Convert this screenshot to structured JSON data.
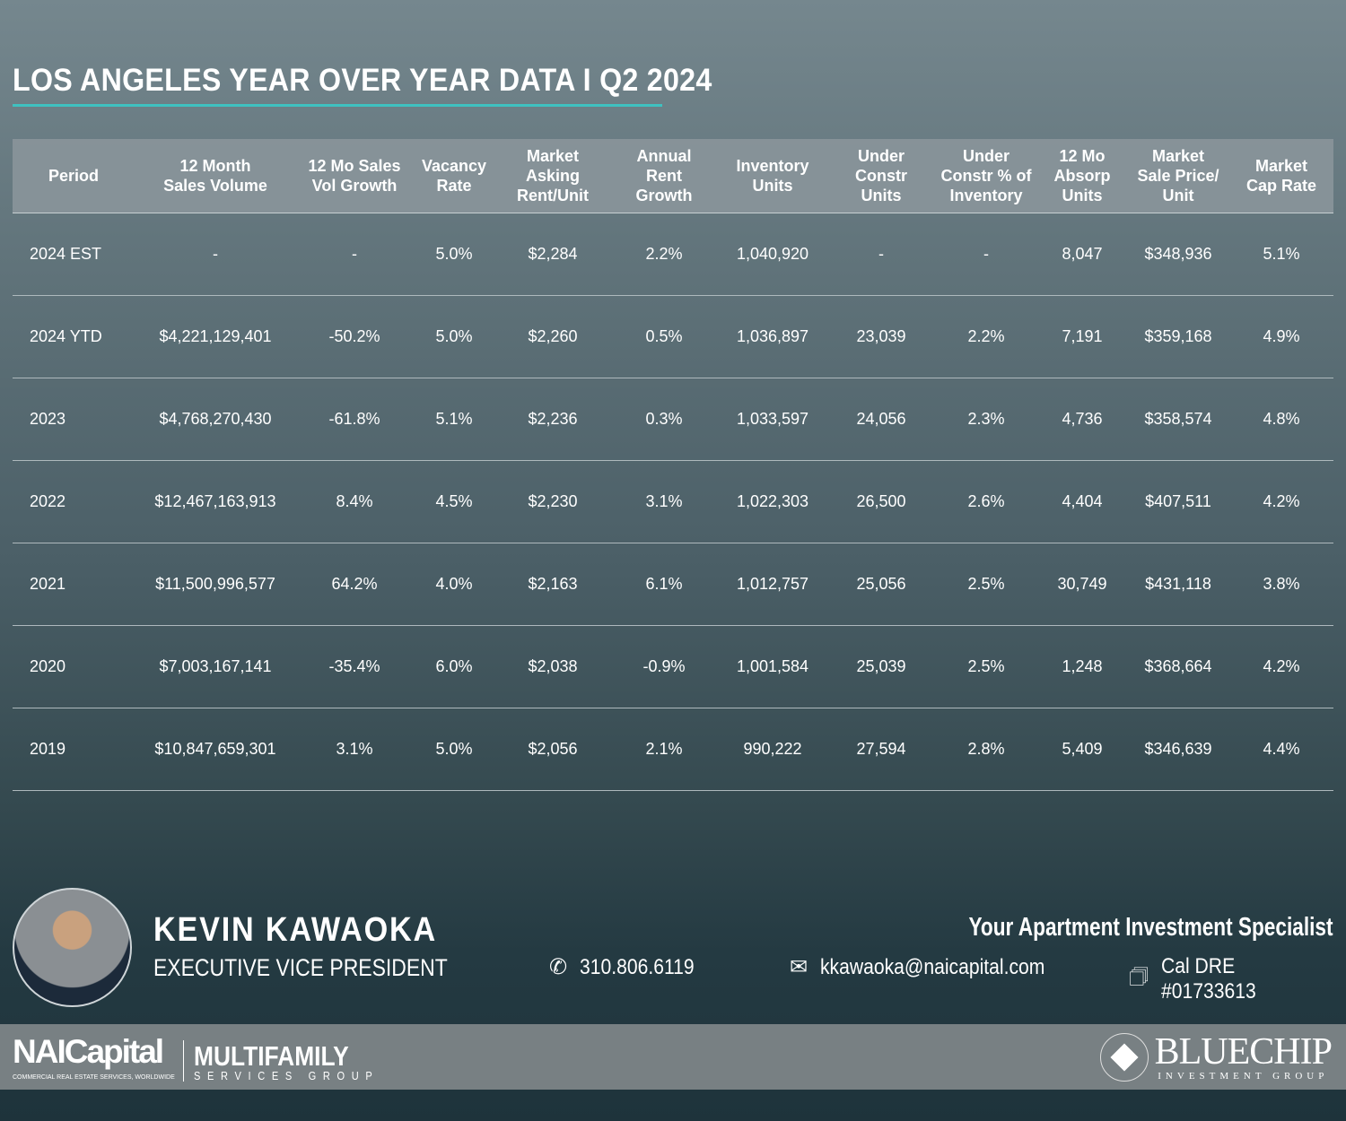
{
  "title": "LOS ANGELES YEAR OVER YEAR DATA I Q2 2024",
  "table": {
    "headers": [
      [
        "Period"
      ],
      [
        "12 Month",
        "Sales Volume"
      ],
      [
        "12 Mo Sales",
        "Vol Growth"
      ],
      [
        "Vacancy",
        "Rate"
      ],
      [
        "Market",
        "Asking",
        "Rent/Unit"
      ],
      [
        "Annual",
        "Rent",
        "Growth"
      ],
      [
        "Inventory",
        "Units"
      ],
      [
        "Under",
        "Constr",
        "Units"
      ],
      [
        "Under",
        "Constr % of",
        "Inventory"
      ],
      [
        "12 Mo",
        "Absorp",
        "Units"
      ],
      [
        "Market",
        "Sale Price/",
        "Unit"
      ],
      [
        "Market",
        "Cap Rate"
      ]
    ],
    "rows": [
      [
        "2024 EST",
        "-",
        "-",
        "5.0%",
        "$2,284",
        "2.2%",
        "1,040,920",
        "-",
        "-",
        "8,047",
        "$348,936",
        "5.1%"
      ],
      [
        "2024 YTD",
        "$4,221,129,401",
        "-50.2%",
        "5.0%",
        "$2,260",
        "0.5%",
        "1,036,897",
        "23,039",
        "2.2%",
        "7,191",
        "$359,168",
        "4.9%"
      ],
      [
        "2023",
        "$4,768,270,430",
        "-61.8%",
        "5.1%",
        "$2,236",
        "0.3%",
        "1,033,597",
        "24,056",
        "2.3%",
        "4,736",
        "$358,574",
        "4.8%"
      ],
      [
        "2022",
        "$12,467,163,913",
        "8.4%",
        "4.5%",
        "$2,230",
        "3.1%",
        "1,022,303",
        "26,500",
        "2.6%",
        "4,404",
        "$407,511",
        "4.2%"
      ],
      [
        "2021",
        "$11,500,996,577",
        "64.2%",
        "4.0%",
        "$2,163",
        "6.1%",
        "1,012,757",
        "25,056",
        "2.5%",
        "30,749",
        "$431,118",
        "3.8%"
      ],
      [
        "2020",
        "$7,003,167,141",
        "-35.4%",
        "6.0%",
        "$2,038",
        "-0.9%",
        "1,001,584",
        "25,039",
        "2.5%",
        "1,248",
        "$368,664",
        "4.2%"
      ],
      [
        "2019",
        "$10,847,659,301",
        "3.1%",
        "5.0%",
        "$2,056",
        "2.1%",
        "990,222",
        "27,594",
        "2.8%",
        "5,409",
        "$346,639",
        "4.4%"
      ]
    ]
  },
  "agent": {
    "name": "KEVIN KAWAOKA",
    "role": "EXECUTIVE VICE PRESIDENT",
    "tagline": "Your Apartment Investment Specialist",
    "phone": "310.806.6119",
    "email": "kkawaoka@naicapital.com",
    "license": "Cal DRE #01733613"
  },
  "footer": {
    "nai": "NAICapital",
    "nai_sub": "COMMERCIAL REAL ESTATE SERVICES, WORLDWIDE",
    "mf": "MULTIFAMILY",
    "mf_sub": "SERVICES GROUP",
    "bc": "BLUECHIP",
    "bc_sub": "INVESTMENT GROUP"
  },
  "colors": {
    "accent": "#3fc1c0",
    "band": "#788083"
  }
}
